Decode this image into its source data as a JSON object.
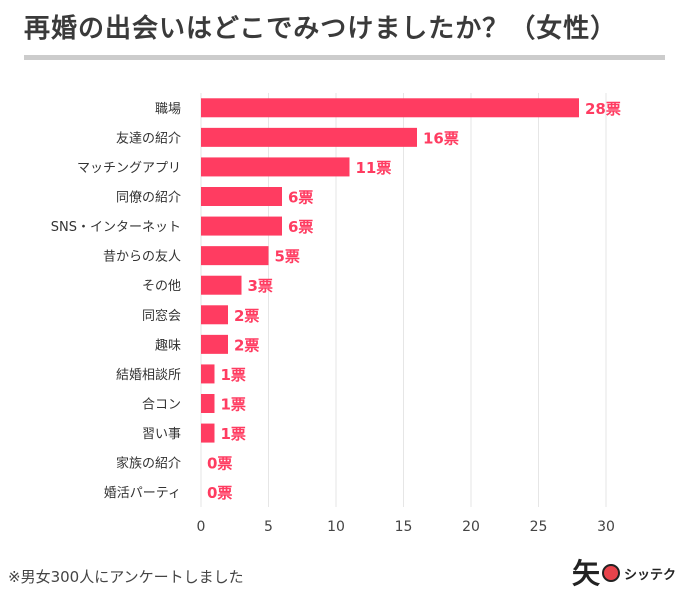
{
  "title": "再婚の出会いはどこでみつけましたか？（女性）",
  "footnote": "※男女300人にアンケートしました",
  "logo": {
    "mark": "矢",
    "text": "シッテク"
  },
  "colors": {
    "bar": "#ff3c61",
    "label": "#ff3c61",
    "grid": "#e6e6e6",
    "axis_text": "#444444"
  },
  "chart_data": {
    "type": "bar",
    "orientation": "horizontal",
    "categories": [
      "職場",
      "友達の紹介",
      "マッチングアプリ",
      "同僚の紹介",
      "SNS・インターネット",
      "昔からの友人",
      "その他",
      "同窓会",
      "趣味",
      "結婚相談所",
      "合コン",
      "習い事",
      "家族の紹介",
      "婚活パーティ"
    ],
    "values": [
      28,
      16,
      11,
      6,
      6,
      5,
      3,
      2,
      2,
      1,
      1,
      1,
      0,
      0
    ],
    "value_labels": [
      "28票",
      "16票",
      "11票",
      "6票",
      "6票",
      "5票",
      "3票",
      "2票",
      "2票",
      "1票",
      "1票",
      "1票",
      "0票",
      "0票"
    ],
    "xlim": [
      0,
      30
    ],
    "xticks": [
      "0",
      "5",
      "10",
      "15",
      "20",
      "25",
      "30"
    ],
    "xlabel": "",
    "ylabel": "",
    "grid": true
  }
}
